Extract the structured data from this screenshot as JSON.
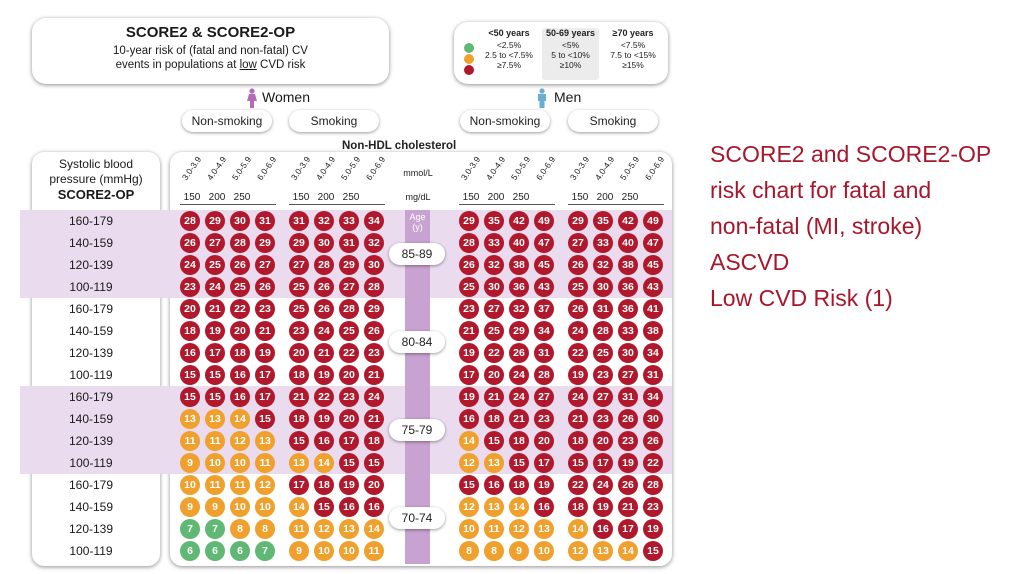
{
  "header": {
    "title": "SCORE2 & SCORE2-OP",
    "subtitle_line1": "10-year risk of (fatal and non-fatal) CV",
    "subtitle_line2_pre": "events in populations at ",
    "subtitle_line2_u": "low",
    "subtitle_line2_post": " CVD risk"
  },
  "legend": {
    "columns": [
      {
        "header": "<50 years",
        "items": [
          "<2.5%",
          "2.5 to <7.5%",
          "≥7.5%"
        ]
      },
      {
        "header": "50-69 years",
        "items": [
          "<5%",
          "5 to <10%",
          "≥10%"
        ]
      },
      {
        "header": "≥70 years",
        "items": [
          "<7.5%",
          "7.5 to <15%",
          "≥15%"
        ]
      }
    ],
    "colors": {
      "low": "#5fb873",
      "moderate": "#f0a02c",
      "high": "#b2182b"
    }
  },
  "women_label": "Women",
  "men_label": "Men",
  "smoking_labels": [
    "Non-smoking",
    "Smoking",
    "Non-smoking",
    "Smoking"
  ],
  "cholesterol_title": "Non-HDL cholesterol",
  "row_header": {
    "line1": "Systolic blood",
    "line2": "pressure (mmHg)",
    "line3": "SCORE2-OP"
  },
  "unit_mmol": "mmol/L",
  "unit_mgdl": "mg/dL",
  "age_header": {
    "line1": "Age",
    "line2": "(y)"
  },
  "side_text": [
    "SCORE2 and SCORE2-OP",
    "risk chart for fatal and",
    "non-fatal (MI, stroke)",
    "ASCVD",
    "Low CVD Risk (1)"
  ],
  "chart_data": {
    "type": "table",
    "title": "SCORE2 & SCORE2-OP",
    "cholesterol_mmol": [
      "3.0-3.9",
      "4.0-4.9",
      "5.0-5.9",
      "6.0-6.9"
    ],
    "cholesterol_mgdl": [
      "150",
      "200",
      "250"
    ],
    "groups": [
      "Women Non-smoking",
      "Women Smoking",
      "Men Non-smoking",
      "Men Smoking"
    ],
    "sbp": [
      "160-179",
      "140-159",
      "120-139",
      "100-119"
    ],
    "age_bands": [
      {
        "age": "85-89",
        "values": [
          [
            [
              28,
              29,
              30,
              31
            ],
            [
              31,
              32,
              33,
              34
            ],
            [
              29,
              35,
              42,
              49
            ],
            [
              29,
              35,
              42,
              49
            ]
          ],
          [
            [
              26,
              27,
              28,
              29
            ],
            [
              29,
              30,
              31,
              32
            ],
            [
              28,
              33,
              40,
              47
            ],
            [
              27,
              33,
              40,
              47
            ]
          ],
          [
            [
              24,
              25,
              26,
              27
            ],
            [
              27,
              28,
              29,
              30
            ],
            [
              26,
              32,
              38,
              45
            ],
            [
              26,
              32,
              38,
              45
            ]
          ],
          [
            [
              23,
              24,
              25,
              26
            ],
            [
              25,
              26,
              27,
              28
            ],
            [
              25,
              30,
              36,
              43
            ],
            [
              25,
              30,
              36,
              43
            ]
          ]
        ],
        "colors": [
          [
            [
              "h",
              "h",
              "h",
              "h"
            ],
            [
              "h",
              "h",
              "h",
              "h"
            ],
            [
              "h",
              "h",
              "h",
              "h"
            ],
            [
              "h",
              "h",
              "h",
              "h"
            ]
          ],
          [
            [
              "h",
              "h",
              "h",
              "h"
            ],
            [
              "h",
              "h",
              "h",
              "h"
            ],
            [
              "h",
              "h",
              "h",
              "h"
            ],
            [
              "h",
              "h",
              "h",
              "h"
            ]
          ],
          [
            [
              "h",
              "h",
              "h",
              "h"
            ],
            [
              "h",
              "h",
              "h",
              "h"
            ],
            [
              "h",
              "h",
              "h",
              "h"
            ],
            [
              "h",
              "h",
              "h",
              "h"
            ]
          ],
          [
            [
              "h",
              "h",
              "h",
              "h"
            ],
            [
              "h",
              "h",
              "h",
              "h"
            ],
            [
              "h",
              "h",
              "h",
              "h"
            ],
            [
              "h",
              "h",
              "h",
              "h"
            ]
          ]
        ]
      },
      {
        "age": "80-84",
        "values": [
          [
            [
              20,
              21,
              22,
              23
            ],
            [
              25,
              26,
              28,
              29
            ],
            [
              23,
              27,
              32,
              37
            ],
            [
              26,
              31,
              36,
              41
            ]
          ],
          [
            [
              18,
              19,
              20,
              21
            ],
            [
              23,
              24,
              25,
              26
            ],
            [
              21,
              25,
              29,
              34
            ],
            [
              24,
              28,
              33,
              38
            ]
          ],
          [
            [
              16,
              17,
              18,
              19
            ],
            [
              20,
              21,
              22,
              23
            ],
            [
              19,
              22,
              26,
              31
            ],
            [
              22,
              25,
              30,
              34
            ]
          ],
          [
            [
              15,
              15,
              16,
              17
            ],
            [
              18,
              19,
              20,
              21
            ],
            [
              17,
              20,
              24,
              28
            ],
            [
              19,
              23,
              27,
              31
            ]
          ]
        ],
        "colors": [
          [
            [
              "h",
              "h",
              "h",
              "h"
            ],
            [
              "h",
              "h",
              "h",
              "h"
            ],
            [
              "h",
              "h",
              "h",
              "h"
            ],
            [
              "h",
              "h",
              "h",
              "h"
            ]
          ],
          [
            [
              "h",
              "h",
              "h",
              "h"
            ],
            [
              "h",
              "h",
              "h",
              "h"
            ],
            [
              "h",
              "h",
              "h",
              "h"
            ],
            [
              "h",
              "h",
              "h",
              "h"
            ]
          ],
          [
            [
              "h",
              "h",
              "h",
              "h"
            ],
            [
              "h",
              "h",
              "h",
              "h"
            ],
            [
              "h",
              "h",
              "h",
              "h"
            ],
            [
              "h",
              "h",
              "h",
              "h"
            ]
          ],
          [
            [
              "h",
              "h",
              "h",
              "h"
            ],
            [
              "h",
              "h",
              "h",
              "h"
            ],
            [
              "h",
              "h",
              "h",
              "h"
            ],
            [
              "h",
              "h",
              "h",
              "h"
            ]
          ]
        ]
      },
      {
        "age": "75-79",
        "values": [
          [
            [
              15,
              15,
              16,
              17
            ],
            [
              21,
              22,
              23,
              24
            ],
            [
              19,
              21,
              24,
              27
            ],
            [
              24,
              27,
              31,
              34
            ]
          ],
          [
            [
              13,
              13,
              14,
              15
            ],
            [
              18,
              19,
              20,
              21
            ],
            [
              16,
              18,
              21,
              23
            ],
            [
              21,
              23,
              26,
              30
            ]
          ],
          [
            [
              11,
              11,
              12,
              13
            ],
            [
              15,
              16,
              17,
              18
            ],
            [
              14,
              15,
              18,
              20
            ],
            [
              18,
              20,
              23,
              26
            ]
          ],
          [
            [
              9,
              10,
              10,
              11
            ],
            [
              13,
              14,
              15,
              15
            ],
            [
              12,
              13,
              15,
              17
            ],
            [
              15,
              17,
              19,
              22
            ]
          ]
        ],
        "colors": [
          [
            [
              "h",
              "h",
              "h",
              "h"
            ],
            [
              "h",
              "h",
              "h",
              "h"
            ],
            [
              "h",
              "h",
              "h",
              "h"
            ],
            [
              "h",
              "h",
              "h",
              "h"
            ]
          ],
          [
            [
              "m",
              "m",
              "m",
              "h"
            ],
            [
              "h",
              "h",
              "h",
              "h"
            ],
            [
              "h",
              "h",
              "h",
              "h"
            ],
            [
              "h",
              "h",
              "h",
              "h"
            ]
          ],
          [
            [
              "m",
              "m",
              "m",
              "m"
            ],
            [
              "h",
              "h",
              "h",
              "h"
            ],
            [
              "m",
              "h",
              "h",
              "h"
            ],
            [
              "h",
              "h",
              "h",
              "h"
            ]
          ],
          [
            [
              "m",
              "m",
              "m",
              "m"
            ],
            [
              "m",
              "m",
              "h",
              "h"
            ],
            [
              "m",
              "m",
              "h",
              "h"
            ],
            [
              "h",
              "h",
              "h",
              "h"
            ]
          ]
        ]
      },
      {
        "age": "70-74",
        "values": [
          [
            [
              10,
              11,
              11,
              12
            ],
            [
              17,
              18,
              19,
              20
            ],
            [
              15,
              16,
              18,
              19
            ],
            [
              22,
              24,
              26,
              28
            ]
          ],
          [
            [
              9,
              9,
              10,
              10
            ],
            [
              14,
              15,
              16,
              16
            ],
            [
              12,
              13,
              14,
              16
            ],
            [
              18,
              19,
              21,
              23
            ]
          ],
          [
            [
              7,
              7,
              8,
              8
            ],
            [
              11,
              12,
              13,
              14
            ],
            [
              10,
              11,
              12,
              13
            ],
            [
              14,
              16,
              17,
              19
            ]
          ],
          [
            [
              6,
              6,
              6,
              7
            ],
            [
              9,
              10,
              10,
              11
            ],
            [
              8,
              8,
              9,
              10
            ],
            [
              12,
              13,
              14,
              15
            ]
          ]
        ],
        "colors": [
          [
            [
              "m",
              "m",
              "m",
              "m"
            ],
            [
              "h",
              "h",
              "h",
              "h"
            ],
            [
              "h",
              "h",
              "h",
              "h"
            ],
            [
              "h",
              "h",
              "h",
              "h"
            ]
          ],
          [
            [
              "m",
              "m",
              "m",
              "m"
            ],
            [
              "m",
              "h",
              "h",
              "h"
            ],
            [
              "m",
              "m",
              "m",
              "h"
            ],
            [
              "h",
              "h",
              "h",
              "h"
            ]
          ],
          [
            [
              "l",
              "l",
              "m",
              "m"
            ],
            [
              "m",
              "m",
              "m",
              "m"
            ],
            [
              "m",
              "m",
              "m",
              "m"
            ],
            [
              "m",
              "h",
              "h",
              "h"
            ]
          ],
          [
            [
              "l",
              "l",
              "l",
              "l"
            ],
            [
              "m",
              "m",
              "m",
              "m"
            ],
            [
              "m",
              "m",
              "m",
              "m"
            ],
            [
              "m",
              "m",
              "m",
              "h"
            ]
          ]
        ]
      }
    ]
  }
}
